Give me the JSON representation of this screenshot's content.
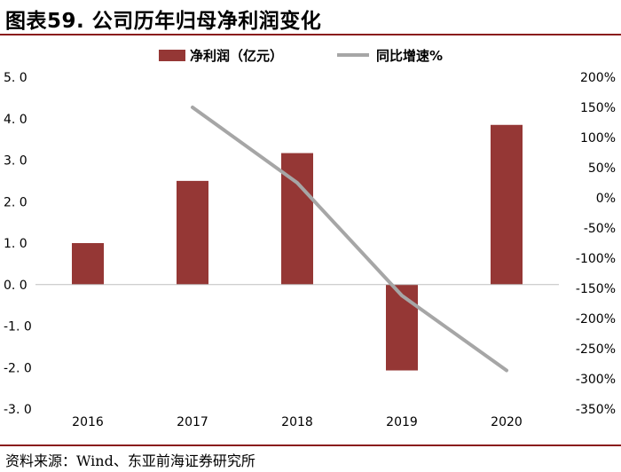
{
  "figure": {
    "title": "图表59. 公司历年归母净利润变化",
    "source": "资料来源：Wind、东亚前海证券研究所"
  },
  "chart_data": {
    "type": "bar",
    "title": "图表59. 公司历年归母净利润变化",
    "categories": [
      "2016",
      "2017",
      "2018",
      "2019",
      "2020"
    ],
    "series": [
      {
        "name": "净利润（亿元）",
        "type": "bar",
        "axis": "left",
        "color": "#953735",
        "values": [
          1.0,
          2.5,
          3.17,
          -2.07,
          3.85
        ]
      },
      {
        "name": "同比增速%",
        "type": "line",
        "axis": "right",
        "color": "#a6a6a6",
        "values": [
          null,
          150,
          25,
          -162,
          -286
        ]
      }
    ],
    "left_axis": {
      "ylim": [
        -3.0,
        5.0
      ],
      "ticks": [
        5.0,
        4.0,
        3.0,
        2.0,
        1.0,
        0.0,
        -1.0,
        -2.0,
        -3.0
      ],
      "tick_labels": [
        "5. 0",
        "4. 0",
        "3. 0",
        "2. 0",
        "1. 0",
        "0. 0",
        "-1. 0",
        "-2. 0",
        "-3. 0"
      ]
    },
    "right_axis": {
      "ylim": [
        -350,
        200
      ],
      "ticks": [
        200,
        150,
        100,
        50,
        0,
        -50,
        -100,
        -150,
        -200,
        -250,
        -300,
        -350
      ],
      "tick_labels": [
        "200%",
        "150%",
        "100%",
        "50%",
        "0%",
        "-50%",
        "-100%",
        "-150%",
        "-200%",
        "-250%",
        "-300%",
        "-350%"
      ]
    },
    "legend": "top-center",
    "grid": false
  }
}
